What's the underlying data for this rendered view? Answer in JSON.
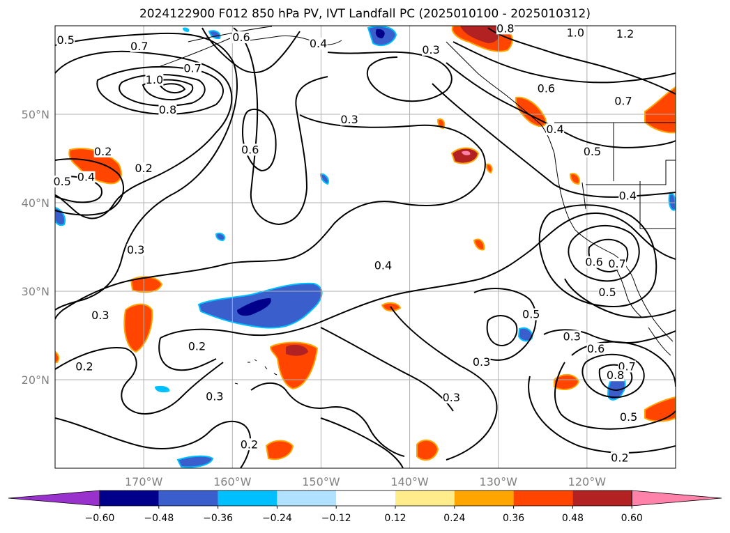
{
  "title": "2024122900 F012 850 hPa PV, IVT Landfall PC (2025010100 - 2025010312)",
  "map": {
    "projection_extent": {
      "lon_min": -180,
      "lon_max": -110,
      "lat_min": 10,
      "lat_max": 60
    },
    "lat_labels": [
      {
        "lat": 50,
        "text": "50°N"
      },
      {
        "lat": 40,
        "text": "40°N"
      },
      {
        "lat": 30,
        "text": "30°N"
      },
      {
        "lat": 20,
        "text": "20°N"
      }
    ],
    "lon_labels": [
      {
        "lon": -170,
        "text": "170°W"
      },
      {
        "lon": -160,
        "text": "160°W"
      },
      {
        "lon": -150,
        "text": "150°W"
      },
      {
        "lon": -140,
        "text": "140°W"
      },
      {
        "lon": -130,
        "text": "130°W"
      },
      {
        "lon": -120,
        "text": "120°W"
      }
    ],
    "grid_color": "#b0b0b0",
    "contour_color": "#000000",
    "contour_labels": [
      {
        "text": "0.5",
        "lon": -178.8,
        "lat": 58.2
      },
      {
        "text": "0.7",
        "lon": -170.5,
        "lat": 57.5
      },
      {
        "text": "0.6",
        "lon": -159,
        "lat": 58.5
      },
      {
        "text": "0.4",
        "lon": -150.3,
        "lat": 57.8
      },
      {
        "text": "0.3",
        "lon": -137.6,
        "lat": 57.1
      },
      {
        "text": "0.8",
        "lon": -129.2,
        "lat": 59.5
      },
      {
        "text": "1.0",
        "lon": -121.3,
        "lat": 59.0
      },
      {
        "text": "1.2",
        "lon": -115.7,
        "lat": 58.9
      },
      {
        "text": "1.0",
        "lon": -168.8,
        "lat": 53.7
      },
      {
        "text": "0.7",
        "lon": -164.5,
        "lat": 55.0
      },
      {
        "text": "0.8",
        "lon": -167.3,
        "lat": 50.3
      },
      {
        "text": "0.6",
        "lon": -124.6,
        "lat": 52.7
      },
      {
        "text": "0.7",
        "lon": -115.9,
        "lat": 51.3
      },
      {
        "text": "0.3",
        "lon": -146.8,
        "lat": 49.2
      },
      {
        "text": "0.4",
        "lon": -123.6,
        "lat": 48.1
      },
      {
        "text": "0.5",
        "lon": -119.4,
        "lat": 45.6
      },
      {
        "text": "0.6",
        "lon": -158.0,
        "lat": 45.8
      },
      {
        "text": "0.2",
        "lon": -174.6,
        "lat": 45.6
      },
      {
        "text": "0.2",
        "lon": -170.0,
        "lat": 43.7
      },
      {
        "text": "0.4",
        "lon": -176.5,
        "lat": 42.7
      },
      {
        "text": "0.5",
        "lon": -179.2,
        "lat": 42.2
      },
      {
        "text": "0.4",
        "lon": -115.4,
        "lat": 40.6
      },
      {
        "text": "0.3",
        "lon": -170.9,
        "lat": 34.5
      },
      {
        "text": "0.4",
        "lon": -143.0,
        "lat": 32.7
      },
      {
        "text": "0.6",
        "lon": -119.2,
        "lat": 33.1
      },
      {
        "text": "0.7",
        "lon": -116.6,
        "lat": 32.9
      },
      {
        "text": "0.5",
        "lon": -117.7,
        "lat": 29.7
      },
      {
        "text": "0.3",
        "lon": -174.9,
        "lat": 27.1
      },
      {
        "text": "0.5",
        "lon": -126.3,
        "lat": 27.2
      },
      {
        "text": "0.3",
        "lon": -121.7,
        "lat": 24.7
      },
      {
        "text": "0.6",
        "lon": -119.0,
        "lat": 23.3
      },
      {
        "text": "0.7",
        "lon": -115.5,
        "lat": 21.3
      },
      {
        "text": "0.8",
        "lon": -116.8,
        "lat": 20.3
      },
      {
        "text": "0.2",
        "lon": -164.0,
        "lat": 23.6
      },
      {
        "text": "0.3",
        "lon": -131.9,
        "lat": 21.8
      },
      {
        "text": "0.2",
        "lon": -176.7,
        "lat": 21.3
      },
      {
        "text": "0.3",
        "lon": -162.0,
        "lat": 17.9
      },
      {
        "text": "0.3",
        "lon": -135.3,
        "lat": 17.8
      },
      {
        "text": "0.5",
        "lon": -115.3,
        "lat": 15.6
      },
      {
        "text": "0.2",
        "lon": -158.1,
        "lat": 12.5
      },
      {
        "text": "0.2",
        "lon": -116.3,
        "lat": 11.0
      }
    ]
  },
  "colorbar": {
    "ticks": [
      "−0.60",
      "−0.48",
      "−0.36",
      "−0.24",
      "−0.12",
      "0.12",
      "0.24",
      "0.36",
      "0.48",
      "0.60"
    ],
    "colors": [
      "#9932cc",
      "#00008b",
      "#3a5fcd",
      "#00bfff",
      "#b0e2ff",
      "#ffffff",
      "#ffec8b",
      "#ffa500",
      "#ff4500",
      "#b22222",
      "#ff82ab"
    ]
  }
}
